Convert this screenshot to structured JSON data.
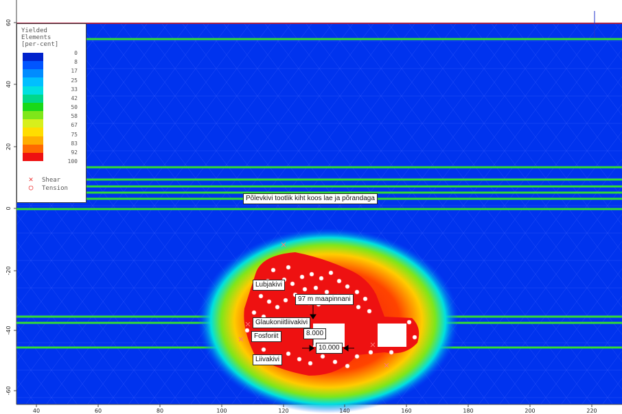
{
  "legend": {
    "title_lines": [
      "Yielded",
      "Elements",
      "[per-cent]"
    ],
    "ticks": [
      "0",
      "8",
      "17",
      "25",
      "33",
      "42",
      "50",
      "58",
      "67",
      "75",
      "83",
      "92",
      "100"
    ],
    "colors": [
      "#0022cc",
      "#0055ff",
      "#008cff",
      "#00bfff",
      "#00e0e0",
      "#00d88a",
      "#19d919",
      "#7fe61a",
      "#d7ef1c",
      "#ffdd00",
      "#ffae00",
      "#ff6a00",
      "#ee1111"
    ],
    "shear_label": "Shear",
    "tension_label": "Tension"
  },
  "y_axis": {
    "ticks": [
      "60",
      "40",
      "20",
      "0",
      "-20",
      "-40",
      "-60"
    ]
  },
  "x_axis": {
    "ticks": [
      "40",
      "60",
      "80",
      "100",
      "120",
      "140",
      "160",
      "180",
      "200",
      "220"
    ]
  },
  "annotations": {
    "layer_label": "Põlevkivi tootlik kiht koos lae ja põrandaga",
    "lubjakivi": "Lubjakivi",
    "depth": "97 m maapinnani",
    "glaukoniit": "Glaukoniitliivakivi",
    "fosforiit": "Fosforiit",
    "dim1": "8.000",
    "dim2": "10.000",
    "liivakivi": "Liivakivi"
  },
  "colors": {
    "background": "#0033ee",
    "layer_line": "#33dd33",
    "cavity": "#ffffff",
    "yield_high": "#ee1111"
  }
}
